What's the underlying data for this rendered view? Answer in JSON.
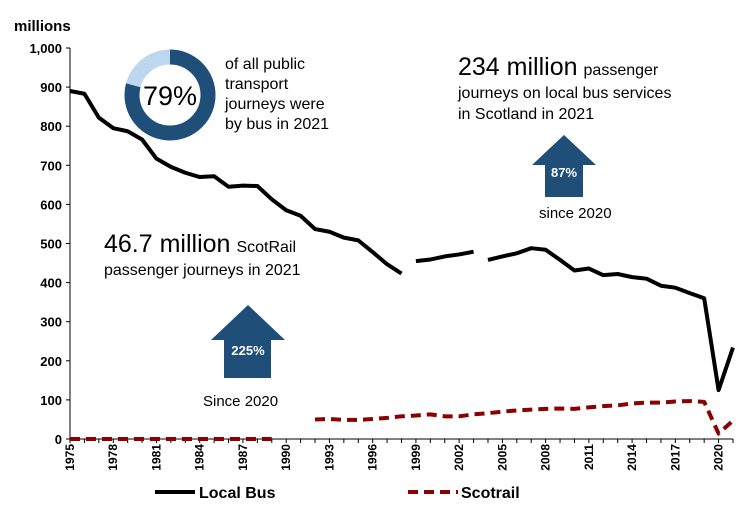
{
  "chart_data": {
    "type": "line",
    "ylabel": "millions",
    "ylim": [
      0,
      1000
    ],
    "yticks": [
      "0",
      "100",
      "200",
      "300",
      "400",
      "500",
      "600",
      "700",
      "800",
      "900",
      "1,000"
    ],
    "xticks": [
      "1975",
      "1978",
      "1981",
      "1984",
      "1987",
      "1990",
      "1993",
      "1996",
      "1999",
      "2002",
      "2005",
      "2008",
      "2011",
      "2014",
      "2017",
      "2020"
    ],
    "xlim": [
      1975,
      2021
    ],
    "series": [
      {
        "name": "Local Bus",
        "color": "#000000",
        "style": "solid",
        "segments": [
          [
            [
              1975,
              890
            ],
            [
              1976,
              883
            ],
            [
              1977,
              822
            ],
            [
              1978,
              795
            ],
            [
              1979,
              787
            ],
            [
              1980,
              766
            ],
            [
              1981,
              717
            ],
            [
              1982,
              696
            ],
            [
              1983,
              681
            ],
            [
              1984,
              670
            ],
            [
              1985,
              672
            ],
            [
              1986,
              645
            ],
            [
              1987,
              648
            ],
            [
              1988,
              647
            ],
            [
              1989,
              613
            ],
            [
              1990,
              585
            ],
            [
              1991,
              571
            ],
            [
              1992,
              537
            ],
            [
              1993,
              530
            ],
            [
              1994,
              515
            ],
            [
              1995,
              508
            ],
            [
              1996,
              478
            ],
            [
              1997,
              447
            ],
            [
              1998,
              423
            ]
          ],
          [
            [
              1999,
              455
            ],
            [
              2000,
              459
            ],
            [
              2001,
              467
            ],
            [
              2002,
              472
            ],
            [
              2003,
              479
            ]
          ],
          [
            [
              2004,
              458
            ],
            [
              2005,
              467
            ],
            [
              2006,
              475
            ],
            [
              2007,
              488
            ],
            [
              2008,
              484
            ],
            [
              2009,
              458
            ],
            [
              2010,
              431
            ],
            [
              2011,
              436
            ],
            [
              2012,
              419
            ],
            [
              2013,
              422
            ],
            [
              2014,
              414
            ],
            [
              2015,
              410
            ],
            [
              2016,
              392
            ],
            [
              2017,
              387
            ],
            [
              2018,
              373
            ],
            [
              2019,
              360
            ],
            [
              2020,
              125
            ],
            [
              2021,
              234
            ]
          ]
        ]
      },
      {
        "name": "Scotrail",
        "color": "#8b0000",
        "style": "dashed",
        "segments": [
          [
            [
              1975,
              0
            ],
            [
              1976,
              0
            ],
            [
              1977,
              0
            ],
            [
              1978,
              0
            ],
            [
              1979,
              0
            ],
            [
              1980,
              0
            ],
            [
              1981,
              0
            ],
            [
              1982,
              0
            ],
            [
              1983,
              0
            ],
            [
              1984,
              0
            ],
            [
              1985,
              0
            ],
            [
              1986,
              0
            ],
            [
              1987,
              0
            ],
            [
              1988,
              0
            ],
            [
              1989,
              0
            ]
          ],
          [
            [
              1992,
              50
            ],
            [
              1993,
              51
            ],
            [
              1994,
              49
            ],
            [
              1995,
              49
            ],
            [
              1996,
              51
            ],
            [
              1997,
              54
            ],
            [
              1998,
              58
            ],
            [
              1999,
              60
            ],
            [
              2000,
              63
            ],
            [
              2001,
              58
            ],
            [
              2002,
              58
            ],
            [
              2003,
              63
            ],
            [
              2004,
              66
            ],
            [
              2005,
              70
            ],
            [
              2006,
              73
            ],
            [
              2007,
              75
            ],
            [
              2008,
              77
            ],
            [
              2009,
              78
            ],
            [
              2010,
              77
            ],
            [
              2011,
              81
            ],
            [
              2012,
              84
            ],
            [
              2013,
              86
            ],
            [
              2014,
              91
            ],
            [
              2015,
              93
            ],
            [
              2016,
              93
            ],
            [
              2017,
              96
            ],
            [
              2018,
              97
            ],
            [
              2019,
              95
            ],
            [
              2020,
              14
            ],
            [
              2021,
              47
            ]
          ]
        ]
      }
    ],
    "annotations": {
      "donut": {
        "percent": 79,
        "label": "79%",
        "text": [
          "of all public",
          "transport",
          "journeys were",
          "by bus in 2021"
        ]
      },
      "bus": {
        "big": "234 million",
        "small": "passenger",
        "lines": [
          "journeys on local bus services",
          "in Scotland in 2021"
        ],
        "arrow_label": "87%",
        "since": "since 2020"
      },
      "rail": {
        "big": "46.7 million",
        "small": "ScotRail",
        "line2": "passenger journeys in 2021",
        "arrow_label": "225%",
        "since": "Since 2020"
      }
    },
    "colors": {
      "accent": "#1f4e79",
      "donut_light": "#bdd7ee",
      "bus": "#000000",
      "rail": "#8b0000"
    }
  }
}
